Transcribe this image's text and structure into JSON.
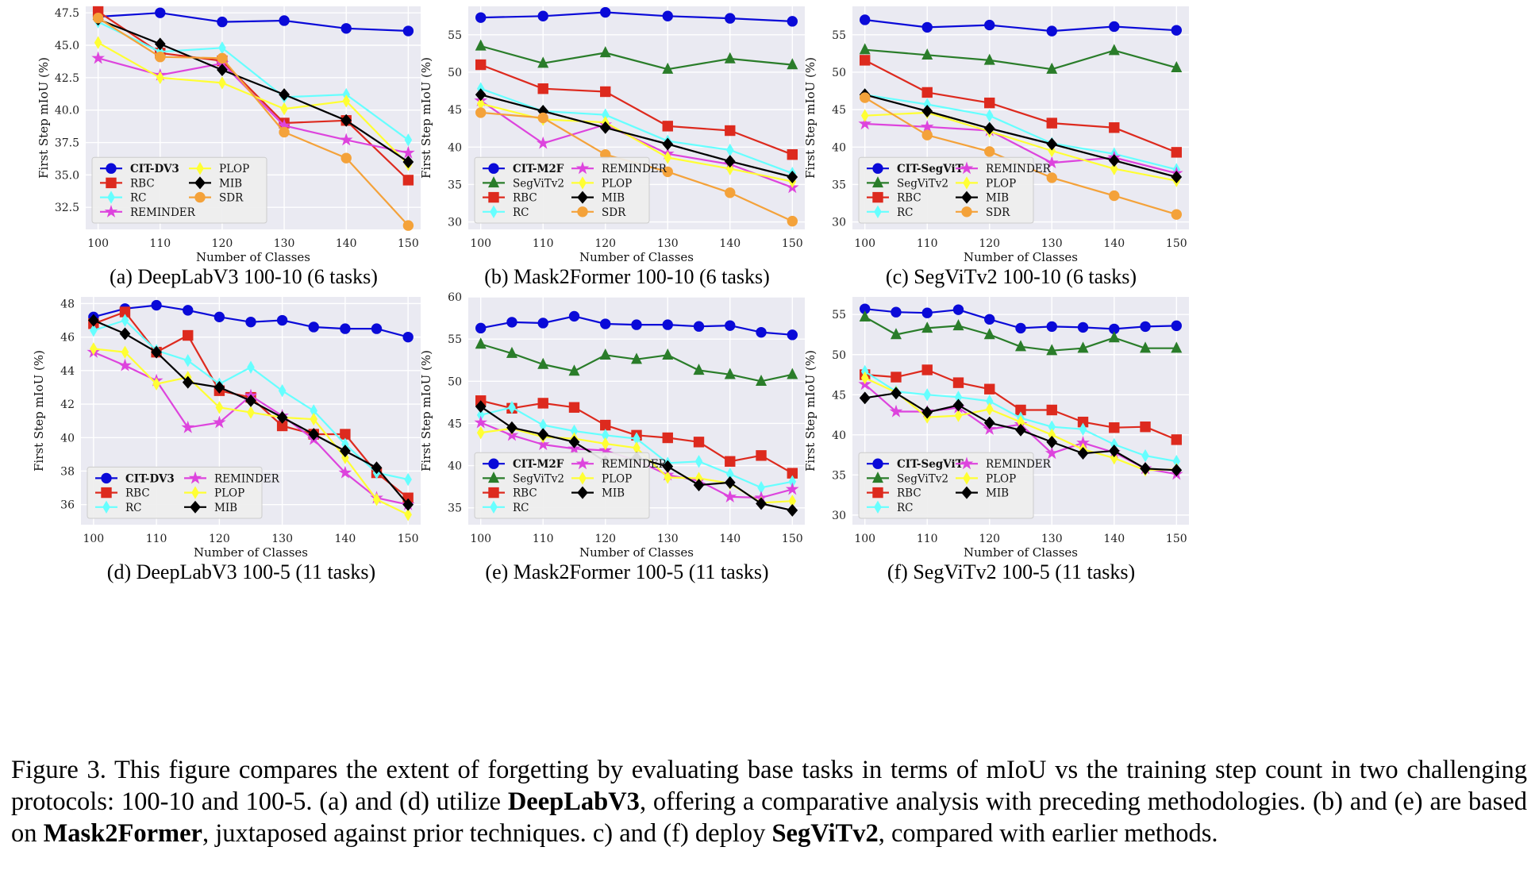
{
  "legend_names": {
    "cit_dv3": "CIT-DV3",
    "cit_m2f": "CIT-M2F",
    "cit_segvit": "CIT-SegViT",
    "segvitv2": "SegViTv2",
    "rbc": "RBC",
    "rc": "RC",
    "reminder": "REMINDER",
    "plop": "PLOP",
    "mib": "MIB",
    "sdr": "SDR"
  },
  "colors": {
    "cit": "#0a0ad8",
    "segvitv2": "#2a7d2a",
    "rbc": "#dd2a1e",
    "rc": "#66ffff",
    "reminder": "#dd44dd",
    "plop": "#ffff33",
    "mib": "#000000",
    "sdr": "#f4a23a",
    "plot_bg": "#eaeaf2",
    "grid": "#ffffff"
  },
  "chart_data": [
    {
      "type": "line",
      "caption": "(a) DeepLabV3 100-10 (6 tasks)",
      "xlabel": "Number of Classes",
      "ylabel": "First Step mIoU (%)",
      "x": [
        100,
        110,
        120,
        130,
        140,
        150
      ],
      "xticks": [
        100,
        110,
        120,
        130,
        140,
        150
      ],
      "yticks": [
        32.5,
        35.0,
        37.5,
        40.0,
        42.5,
        45.0,
        47.5
      ],
      "ytick_labels": [
        "32.5",
        "35.0",
        "37.5",
        "40.0",
        "42.5",
        "45.0",
        "47.5"
      ],
      "xlim": [
        98,
        152
      ],
      "ylim": [
        30.8,
        48.0
      ],
      "legend_cols": 2,
      "series": [
        {
          "name": "CIT-DV3",
          "key": "cit",
          "marker": "circle",
          "values": [
            47.2,
            47.5,
            46.8,
            46.9,
            46.3,
            46.1
          ]
        },
        {
          "name": "RBC",
          "key": "rbc",
          "marker": "square",
          "values": [
            47.6,
            44.4,
            43.8,
            39.0,
            39.2,
            34.6
          ]
        },
        {
          "name": "RC",
          "key": "rc",
          "marker": "diamond-thin",
          "values": [
            46.8,
            44.5,
            44.8,
            41.0,
            41.2,
            37.7
          ]
        },
        {
          "name": "REMINDER",
          "key": "reminder",
          "marker": "star",
          "values": [
            44.0,
            42.7,
            43.6,
            38.8,
            37.7,
            36.7
          ]
        },
        {
          "name": "PLOP",
          "key": "plop",
          "marker": "diamond-thin",
          "values": [
            45.2,
            42.5,
            42.1,
            40.1,
            40.7,
            35.8
          ]
        },
        {
          "name": "MIB",
          "key": "mib",
          "marker": "diamond",
          "values": [
            47.0,
            45.1,
            43.1,
            41.2,
            39.2,
            36.0
          ]
        },
        {
          "name": "SDR",
          "key": "sdr",
          "marker": "circle",
          "values": [
            47.1,
            44.1,
            44.0,
            38.3,
            36.3,
            31.1
          ]
        }
      ]
    },
    {
      "type": "line",
      "caption": "(b) Mask2Former 100-10 (6 tasks)",
      "xlabel": "Number of Classes",
      "ylabel": "First Step mIoU (%)",
      "x": [
        100,
        110,
        120,
        130,
        140,
        150
      ],
      "xticks": [
        100,
        110,
        120,
        130,
        140,
        150
      ],
      "yticks": [
        30,
        35,
        40,
        45,
        50,
        55
      ],
      "ytick_labels": [
        "30",
        "35",
        "40",
        "45",
        "50",
        "55"
      ],
      "xlim": [
        98,
        152
      ],
      "ylim": [
        29.0,
        58.8
      ],
      "legend_cols": 2,
      "series": [
        {
          "name": "CIT-M2F",
          "key": "cit",
          "marker": "circle",
          "values": [
            57.3,
            57.5,
            58.0,
            57.5,
            57.2,
            56.8
          ]
        },
        {
          "name": "SegViTv2",
          "key": "segvitv2",
          "marker": "triangle",
          "values": [
            53.5,
            51.2,
            52.6,
            50.4,
            51.8,
            51.0
          ]
        },
        {
          "name": "RBC",
          "key": "rbc",
          "marker": "square",
          "values": [
            51.0,
            47.8,
            47.4,
            42.8,
            42.2,
            39.0
          ]
        },
        {
          "name": "RC",
          "key": "rc",
          "marker": "diamond-thin",
          "values": [
            47.8,
            44.8,
            44.3,
            40.8,
            39.6,
            36.5
          ]
        },
        {
          "name": "REMINDER",
          "key": "reminder",
          "marker": "star",
          "values": [
            46.2,
            40.5,
            43.0,
            39.1,
            37.7,
            34.6
          ]
        },
        {
          "name": "PLOP",
          "key": "plop",
          "marker": "diamond-thin",
          "values": [
            45.8,
            43.7,
            43.3,
            38.6,
            37.1,
            35.4
          ]
        },
        {
          "name": "MIB",
          "key": "mib",
          "marker": "diamond",
          "values": [
            47.0,
            44.8,
            42.6,
            40.4,
            38.1,
            36.0
          ]
        },
        {
          "name": "SDR",
          "key": "sdr",
          "marker": "circle",
          "values": [
            44.6,
            43.9,
            39.0,
            36.7,
            33.9,
            30.1
          ]
        }
      ]
    },
    {
      "type": "line",
      "caption": "(c) SegViTv2 100-10 (6 tasks)",
      "xlabel": "Number of Classes",
      "ylabel": "First Step mIoU (%)",
      "x": [
        100,
        110,
        120,
        130,
        140,
        150
      ],
      "xticks": [
        100,
        110,
        120,
        130,
        140,
        150
      ],
      "yticks": [
        30,
        35,
        40,
        45,
        50,
        55
      ],
      "ytick_labels": [
        "30",
        "35",
        "40",
        "45",
        "50",
        "55"
      ],
      "xlim": [
        98,
        152
      ],
      "ylim": [
        29.0,
        58.8
      ],
      "legend_cols": 2,
      "series": [
        {
          "name": "CIT-SegViT",
          "key": "cit",
          "marker": "circle",
          "values": [
            57.0,
            56.0,
            56.3,
            55.5,
            56.1,
            55.6
          ]
        },
        {
          "name": "SegViTv2",
          "key": "segvitv2",
          "marker": "triangle",
          "values": [
            53.0,
            52.3,
            51.6,
            50.4,
            52.9,
            50.6
          ]
        },
        {
          "name": "RBC",
          "key": "rbc",
          "marker": "square",
          "values": [
            51.6,
            47.3,
            45.9,
            43.2,
            42.6,
            39.3
          ]
        },
        {
          "name": "RC",
          "key": "rc",
          "marker": "diamond-thin",
          "values": [
            47.0,
            45.7,
            44.2,
            40.5,
            39.1,
            37.0
          ]
        },
        {
          "name": "REMINDER",
          "key": "reminder",
          "marker": "star",
          "values": [
            43.1,
            42.7,
            42.2,
            37.9,
            38.6,
            36.5
          ]
        },
        {
          "name": "PLOP",
          "key": "plop",
          "marker": "diamond-thin",
          "values": [
            44.2,
            44.6,
            42.1,
            39.5,
            37.1,
            35.5
          ]
        },
        {
          "name": "MIB",
          "key": "mib",
          "marker": "diamond",
          "values": [
            47.0,
            44.8,
            42.5,
            40.4,
            38.2,
            36.0
          ]
        },
        {
          "name": "SDR",
          "key": "sdr",
          "marker": "circle",
          "values": [
            46.6,
            41.6,
            39.4,
            35.9,
            33.5,
            31.0
          ]
        }
      ]
    },
    {
      "type": "line",
      "caption": "(d) DeepLabV3 100-5 (11 tasks)",
      "xlabel": "Number of Classes",
      "ylabel": "First Step mIoU (%)",
      "x": [
        100,
        105,
        110,
        115,
        120,
        125,
        130,
        135,
        140,
        145,
        150
      ],
      "xticks": [
        100,
        110,
        120,
        130,
        140,
        150
      ],
      "yticks": [
        36,
        38,
        40,
        42,
        44,
        46,
        48
      ],
      "ytick_labels": [
        "36",
        "38",
        "40",
        "42",
        "44",
        "46",
        "48"
      ],
      "xlim": [
        98,
        152
      ],
      "ylim": [
        34.8,
        48.4
      ],
      "legend_cols": 2,
      "series": [
        {
          "name": "CIT-DV3",
          "key": "cit",
          "marker": "circle",
          "values": [
            47.2,
            47.7,
            47.9,
            47.6,
            47.2,
            46.9,
            47.0,
            46.6,
            46.5,
            46.5,
            46.0
          ]
        },
        {
          "name": "RBC",
          "key": "rbc",
          "marker": "square",
          "values": [
            46.8,
            47.5,
            45.1,
            46.1,
            42.8,
            42.4,
            40.7,
            40.2,
            40.2,
            37.9,
            36.4
          ]
        },
        {
          "name": "RC",
          "key": "rc",
          "marker": "diamond-thin",
          "values": [
            46.4,
            47.0,
            45.2,
            44.6,
            43.2,
            44.2,
            42.8,
            41.6,
            39.6,
            37.9,
            37.5
          ]
        },
        {
          "name": "REMINDER",
          "key": "reminder",
          "marker": "star",
          "values": [
            45.1,
            44.3,
            43.4,
            40.6,
            40.9,
            42.5,
            41.3,
            39.9,
            37.9,
            36.4,
            36.0
          ]
        },
        {
          "name": "PLOP",
          "key": "plop",
          "marker": "diamond-thin",
          "values": [
            45.3,
            45.1,
            43.2,
            43.6,
            41.8,
            41.5,
            41.2,
            41.1,
            38.8,
            36.3,
            35.4
          ]
        },
        {
          "name": "MIB",
          "key": "mib",
          "marker": "diamond",
          "values": [
            47.0,
            46.2,
            45.1,
            43.3,
            43.0,
            42.2,
            41.2,
            40.2,
            39.2,
            38.2,
            36.0
          ]
        }
      ]
    },
    {
      "type": "line",
      "caption": "(e) Mask2Former 100-5 (11 tasks)",
      "xlabel": "Number of Classes",
      "ylabel": "First Step mIoU (%)",
      "x": [
        100,
        105,
        110,
        115,
        120,
        125,
        130,
        135,
        140,
        145,
        150
      ],
      "xticks": [
        100,
        110,
        120,
        130,
        140,
        150
      ],
      "yticks": [
        35,
        40,
        45,
        50,
        55,
        60
      ],
      "ytick_labels": [
        "35",
        "40",
        "45",
        "50",
        "55",
        "60"
      ],
      "xlim": [
        98,
        152
      ],
      "ylim": [
        33.0,
        60.0
      ],
      "legend_cols": 2,
      "series": [
        {
          "name": "CIT-M2F",
          "key": "cit",
          "marker": "circle",
          "values": [
            56.3,
            57.0,
            56.9,
            57.7,
            56.8,
            56.7,
            56.7,
            56.5,
            56.6,
            55.8,
            55.5
          ]
        },
        {
          "name": "SegViTv2",
          "key": "segvitv2",
          "marker": "triangle",
          "values": [
            54.4,
            53.3,
            52.0,
            51.2,
            53.1,
            52.6,
            53.1,
            51.3,
            50.8,
            50.0,
            50.8
          ]
        },
        {
          "name": "RBC",
          "key": "rbc",
          "marker": "square",
          "values": [
            47.7,
            46.8,
            47.4,
            46.9,
            44.8,
            43.6,
            43.3,
            42.8,
            40.5,
            41.2,
            39.1
          ]
        },
        {
          "name": "RC",
          "key": "rc",
          "marker": "diamond-thin",
          "values": [
            46.0,
            46.9,
            44.8,
            44.1,
            43.6,
            43.2,
            40.3,
            40.5,
            39.0,
            37.4,
            38.1
          ]
        },
        {
          "name": "REMINDER",
          "key": "reminder",
          "marker": "star",
          "values": [
            45.1,
            43.6,
            42.5,
            42.0,
            41.8,
            40.6,
            38.9,
            38.2,
            36.3,
            36.2,
            37.2
          ]
        },
        {
          "name": "PLOP",
          "key": "plop",
          "marker": "diamond-thin",
          "values": [
            43.9,
            44.4,
            43.4,
            43.2,
            42.6,
            42.1,
            38.6,
            38.5,
            37.9,
            35.6,
            35.8
          ]
        },
        {
          "name": "MIB",
          "key": "mib",
          "marker": "diamond",
          "values": [
            47.0,
            44.5,
            43.7,
            42.8,
            40.5,
            40.9,
            39.9,
            37.7,
            38.0,
            35.5,
            34.7
          ]
        }
      ]
    },
    {
      "type": "line",
      "caption": "(f) SegViTv2 100-5 (11 tasks)",
      "xlabel": "Number of Classes",
      "ylabel": "First Step mIoU (%)",
      "x": [
        100,
        105,
        110,
        115,
        120,
        125,
        130,
        135,
        140,
        145,
        150
      ],
      "xticks": [
        100,
        110,
        120,
        130,
        140,
        150
      ],
      "yticks": [
        30,
        35,
        40,
        45,
        50,
        55
      ],
      "ytick_labels": [
        "30",
        "35",
        "40",
        "45",
        "50",
        "55"
      ],
      "xlim": [
        98,
        152
      ],
      "ylim": [
        28.8,
        57.2
      ],
      "legend_cols": 2,
      "series": [
        {
          "name": "CIT-SegViT",
          "key": "cit",
          "marker": "circle",
          "values": [
            55.7,
            55.3,
            55.2,
            55.6,
            54.4,
            53.3,
            53.5,
            53.4,
            53.2,
            53.5,
            53.6
          ]
        },
        {
          "name": "SegViTv2",
          "key": "segvitv2",
          "marker": "triangle",
          "values": [
            54.7,
            52.5,
            53.3,
            53.6,
            52.5,
            51.0,
            50.5,
            50.8,
            52.1,
            50.8,
            50.8
          ]
        },
        {
          "name": "RBC",
          "key": "rbc",
          "marker": "square",
          "values": [
            47.5,
            47.2,
            48.1,
            46.5,
            45.7,
            43.1,
            43.1,
            41.6,
            40.9,
            41.0,
            39.4
          ]
        },
        {
          "name": "RC",
          "key": "rc",
          "marker": "diamond-thin",
          "values": [
            47.9,
            45.4,
            45.0,
            44.7,
            44.2,
            42.1,
            41.0,
            40.7,
            38.8,
            37.4,
            36.7
          ]
        },
        {
          "name": "REMINDER",
          "key": "reminder",
          "marker": "star",
          "values": [
            46.3,
            42.9,
            42.9,
            43.4,
            40.7,
            41.3,
            37.7,
            39.0,
            37.8,
            35.8,
            35.1
          ]
        },
        {
          "name": "PLOP",
          "key": "plop",
          "marker": "diamond-thin",
          "values": [
            47.1,
            45.3,
            42.2,
            42.4,
            43.2,
            41.6,
            40.0,
            38.2,
            37.1,
            35.6,
            35.7
          ]
        },
        {
          "name": "MIB",
          "key": "mib",
          "marker": "diamond",
          "values": [
            44.6,
            45.2,
            42.8,
            43.7,
            41.5,
            40.6,
            39.1,
            37.7,
            38.0,
            35.8,
            35.6
          ]
        }
      ]
    }
  ],
  "caption": {
    "p1": "Figure 3.  This figure compares the extent of forgetting by evaluating base tasks in terms of mIoU vs the training step count in two challenging protocols: 100-10 and 100-5. (a) and (d) utilize ",
    "b1": "DeepLabV3",
    "p2": ", offering a comparative analysis with preceding methodologies. (b) and (e) are based on ",
    "b2": "Mask2Former",
    "p3": ", juxtaposed against prior techniques. c) and (f) deploy ",
    "b3": "SegViTv2",
    "p4": ", compared with earlier methods."
  }
}
